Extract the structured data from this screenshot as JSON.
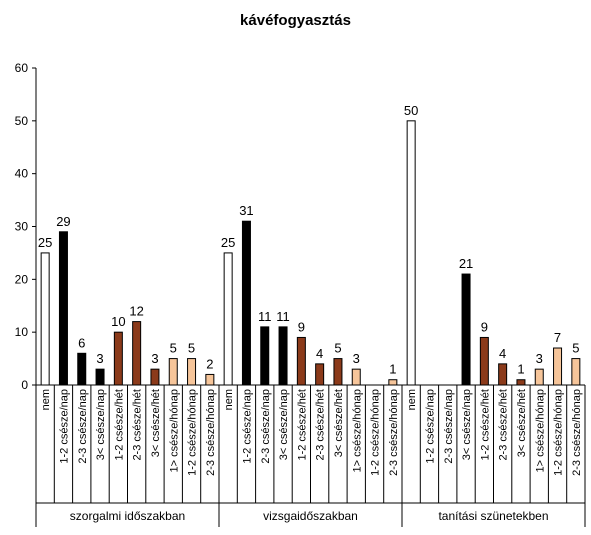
{
  "chart_data": {
    "type": "bar",
    "title": "kávéfogyasztás",
    "ylim": [
      0,
      60
    ],
    "yticks": [
      0,
      10,
      20,
      30,
      40,
      50,
      60
    ],
    "grid": false,
    "legend": "none",
    "colors": {
      "nem": "#ffffff",
      "cup": "#000000",
      "week": "#8b3a1a",
      "month": "#f6c59a",
      "axis": "#000000"
    },
    "groups": [
      {
        "name": "szorgalmi időszakban",
        "categories": [
          "nem",
          "1-2 csésze/nap",
          "2-3 csésze/nap",
          "3< csésze/nap",
          "1-2 csésze/hét",
          "2-3 csésze/hét",
          "3< csésze/hét",
          "1> csésze/hónap",
          "1-2 csésze/hónap",
          "2-3 csésze/hónap"
        ],
        "values": [
          25,
          29,
          6,
          3,
          10,
          12,
          3,
          5,
          5,
          2
        ],
        "labels": [
          "25",
          "29",
          "6",
          "3",
          "10",
          "12",
          "3",
          "5",
          "5",
          "2"
        ]
      },
      {
        "name": "vizsgaidőszakban",
        "categories": [
          "nem",
          "1-2 csésze/nap",
          "2-3 csésze/nap",
          "3< csésze/nap",
          "1-2 csésze/hét",
          "2-3 csésze/hét",
          "3< csésze/hét",
          "1> csésze/hónap",
          "1-2 csésze/hónap",
          "2-3 csésze/hónap"
        ],
        "values": [
          25,
          31,
          11,
          11,
          9,
          4,
          5,
          3,
          0,
          1
        ],
        "labels": [
          "25",
          "31",
          "11",
          "11",
          "9",
          "4",
          "5",
          "3",
          "",
          "1"
        ]
      },
      {
        "name": "tanítási szünetekben",
        "categories": [
          "nem",
          "1-2 csésze/nap",
          "2-3 csésze/nap",
          "3< csésze/nap",
          "1-2 csésze/hét",
          "2-3 csésze/hét",
          "3< csésze/hét",
          "1> csésze/hónap",
          "1-2 csésze/hónap",
          "2-3 csésze/hónap"
        ],
        "values": [
          50,
          0,
          0,
          21,
          9,
          4,
          1,
          3,
          7,
          5
        ],
        "labels": [
          "50",
          "",
          "",
          "21",
          "9",
          "4",
          "1",
          "3",
          "7",
          "5"
        ]
      }
    ],
    "category_colors": [
      "nem",
      "cup",
      "cup",
      "cup",
      "week",
      "week",
      "week",
      "month",
      "month",
      "month"
    ]
  }
}
